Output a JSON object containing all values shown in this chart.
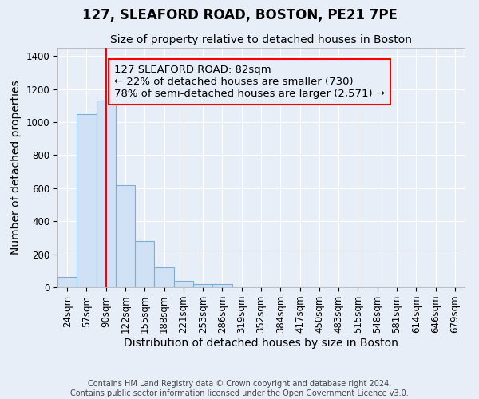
{
  "title": "127, SLEAFORD ROAD, BOSTON, PE21 7PE",
  "subtitle": "Size of property relative to detached houses in Boston",
  "xlabel": "Distribution of detached houses by size in Boston",
  "ylabel": "Number of detached properties",
  "bar_labels": [
    "24sqm",
    "57sqm",
    "90sqm",
    "122sqm",
    "155sqm",
    "188sqm",
    "221sqm",
    "253sqm",
    "286sqm",
    "319sqm",
    "352sqm",
    "384sqm",
    "417sqm",
    "450sqm",
    "483sqm",
    "515sqm",
    "548sqm",
    "581sqm",
    "614sqm",
    "646sqm",
    "679sqm"
  ],
  "bar_values": [
    65,
    1050,
    1130,
    620,
    280,
    120,
    40,
    20,
    20,
    0,
    0,
    0,
    0,
    0,
    0,
    0,
    0,
    0,
    0,
    0,
    0
  ],
  "bar_color": "#d0e0f5",
  "bar_edge_color": "#7bafd4",
  "ylim": [
    0,
    1450
  ],
  "yticks": [
    0,
    200,
    400,
    600,
    800,
    1000,
    1200,
    1400
  ],
  "red_line_x": 2.0,
  "annotation_text_line1": "127 SLEAFORD ROAD: 82sqm",
  "annotation_text_line2": "← 22% of detached houses are smaller (730)",
  "annotation_text_line3": "78% of semi-detached houses are larger (2,571) →",
  "footer_text": "Contains HM Land Registry data © Crown copyright and database right 2024.\nContains public sector information licensed under the Open Government Licence v3.0.",
  "background_color": "#e8eef8",
  "grid_color": "#ffffff",
  "title_fontsize": 12,
  "subtitle_fontsize": 10,
  "axis_label_fontsize": 10,
  "tick_fontsize": 8.5,
  "annotation_fontsize": 9.5,
  "footer_fontsize": 7
}
